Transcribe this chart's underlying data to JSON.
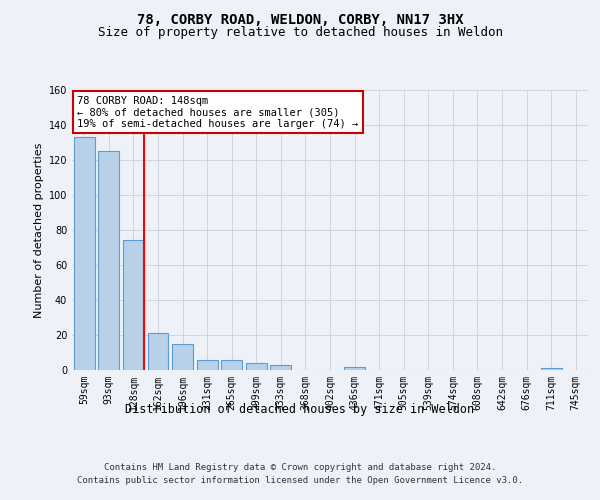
{
  "title": "78, CORBY ROAD, WELDON, CORBY, NN17 3HX",
  "subtitle": "Size of property relative to detached houses in Weldon",
  "xlabel": "Distribution of detached houses by size in Weldon",
  "ylabel": "Number of detached properties",
  "categories": [
    "59sqm",
    "93sqm",
    "128sqm",
    "162sqm",
    "196sqm",
    "231sqm",
    "265sqm",
    "299sqm",
    "333sqm",
    "368sqm",
    "402sqm",
    "436sqm",
    "471sqm",
    "505sqm",
    "539sqm",
    "574sqm",
    "608sqm",
    "642sqm",
    "676sqm",
    "711sqm",
    "745sqm"
  ],
  "values": [
    133,
    125,
    74,
    21,
    15,
    6,
    6,
    4,
    3,
    0,
    0,
    2,
    0,
    0,
    0,
    0,
    0,
    0,
    0,
    1,
    0
  ],
  "bar_color": "#b8d0e8",
  "bar_edge_color": "#5b9bd5",
  "red_line_index": 2,
  "annotation_line1": "78 CORBY ROAD: 148sqm",
  "annotation_line2": "← 80% of detached houses are smaller (305)",
  "annotation_line3": "19% of semi-detached houses are larger (74) →",
  "annotation_box_color": "#ffffff",
  "annotation_box_edge": "#cc0000",
  "ylim": [
    0,
    160
  ],
  "yticks": [
    0,
    20,
    40,
    60,
    80,
    100,
    120,
    140,
    160
  ],
  "footer_line1": "Contains HM Land Registry data © Crown copyright and database right 2024.",
  "footer_line2": "Contains public sector information licensed under the Open Government Licence v3.0.",
  "background_color": "#eef2f8",
  "plot_background": "#eef2f8",
  "grid_color": "#c8d0dc",
  "title_fontsize": 10,
  "subtitle_fontsize": 9,
  "axis_label_fontsize": 8,
  "tick_fontsize": 7,
  "footer_fontsize": 6.5,
  "annotation_fontsize": 7.5
}
